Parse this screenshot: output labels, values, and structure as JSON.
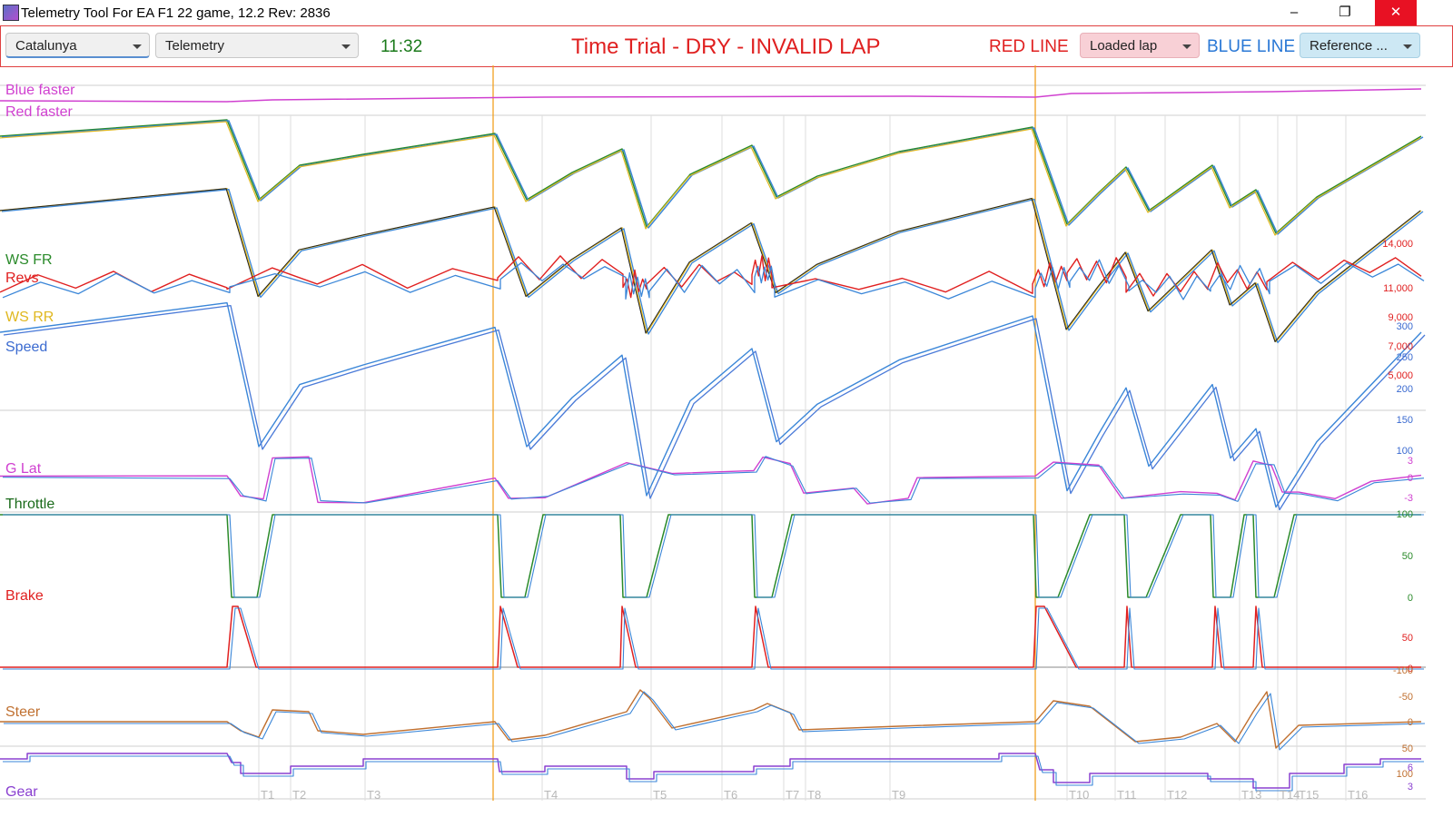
{
  "window": {
    "title": "Telemetry Tool For EA F1 22 game, 12.2    Rev: 2836",
    "minimize": "–",
    "restore": "❐",
    "close": "✕"
  },
  "toolbar": {
    "track": "Catalunya",
    "view": "Telemetry",
    "clock": "11:32",
    "session": "Time Trial - DRY - INVALID LAP",
    "red_line_label": "RED LINE",
    "red_line_value": "Loaded lap",
    "blue_line_label": "BLUE LINE",
    "blue_line_value": "Reference ..."
  },
  "colors": {
    "red": "#e02020",
    "blue": "#3a86d8",
    "green": "#2a8a2a",
    "yellow": "#e0b820",
    "magenta": "#d040d0",
    "orange_steer": "#c07030",
    "purple_gear": "#8a40d0",
    "sector_marker": "#f0a020"
  },
  "channels": {
    "blue_faster": "Blue faster",
    "red_faster": "Red faster",
    "ws_fr": "WS FR",
    "revs": "Revs",
    "ws_rr": "WS RR",
    "speed": "Speed",
    "g_lat": "G Lat",
    "throttle": "Throttle",
    "brake": "Brake",
    "steer": "Steer",
    "gear": "Gear"
  },
  "ticks": {
    "revs": [
      "14,000",
      "11,000",
      "9,000",
      "7,000",
      "5,000"
    ],
    "speed": [
      "300",
      "250",
      "200",
      "150",
      "100"
    ],
    "glat": [
      "3",
      "0",
      "-3"
    ],
    "throttle": [
      "100",
      "50",
      "0"
    ],
    "brake": [
      "50",
      "0"
    ],
    "steer": [
      "-100",
      "-50",
      "0",
      "50",
      "100"
    ],
    "gear": [
      "6",
      "3"
    ]
  },
  "sectors": [
    "T1",
    "T2",
    "T3",
    "T4",
    "T5",
    "T6",
    "T7",
    "T8",
    "T9",
    "T10",
    "T11",
    "T12",
    "T13",
    "T14",
    "T15",
    "T16"
  ]
}
